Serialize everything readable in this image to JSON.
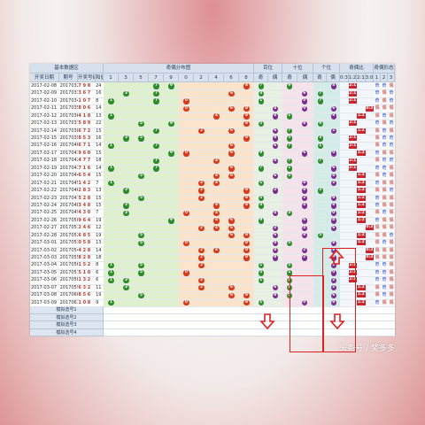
{
  "header": {
    "groups": [
      "基本数据区",
      "奇偶分布图",
      "百位",
      "十位",
      "个位",
      "奇偶比",
      "奇偶形态"
    ],
    "sub_basic": [
      "开奖日期",
      "期号",
      "开奖号码",
      "和值"
    ],
    "sub_dist": [
      "1",
      "3",
      "5",
      "7",
      "9",
      "0",
      "2",
      "4",
      "6",
      "8"
    ],
    "sub_pos": [
      "奇",
      "偶",
      "奇",
      "偶",
      "奇",
      "偶"
    ],
    "sub_ratio": [
      "0:3",
      "1:2",
      "2:1",
      "3:0"
    ],
    "sub_shape": [
      "1",
      "2",
      "3"
    ]
  },
  "rows": [
    {
      "date": "2017-02-08",
      "issue": "2017032",
      "nums": "7 9 8",
      "sum": "24"
    },
    {
      "date": "2017-02-09",
      "issue": "2017033",
      "nums": "3 6 7",
      "sum": "16"
    },
    {
      "date": "2017-02-10",
      "issue": "2017034",
      "nums": "1 0 7",
      "sum": "8"
    },
    {
      "date": "2017-02-11",
      "issue": "2017035",
      "nums": "8 0 6",
      "sum": "14"
    },
    {
      "date": "2017-02-12",
      "issue": "2017036",
      "nums": "4 1 8",
      "sum": "13"
    },
    {
      "date": "2017-02-13",
      "issue": "2017037",
      "nums": "5 8 9",
      "sum": "22"
    },
    {
      "date": "2017-02-14",
      "issue": "2017038",
      "nums": "6 7 2",
      "sum": "15"
    },
    {
      "date": "2017-02-15",
      "issue": "2017039",
      "nums": "8 5 3",
      "sum": "16"
    },
    {
      "date": "2017-02-16",
      "issue": "2017040",
      "nums": "6 7 1",
      "sum": "14"
    },
    {
      "date": "2017-02-17",
      "issue": "2017041",
      "nums": "9 6 0",
      "sum": "15"
    },
    {
      "date": "2017-02-18",
      "issue": "2017042",
      "nums": "4 7 7",
      "sum": "18"
    },
    {
      "date": "2017-02-19",
      "issue": "2017043",
      "nums": "7 1 6",
      "sum": "14"
    },
    {
      "date": "2017-02-20",
      "issue": "2017044",
      "nums": "6 5 4",
      "sum": "15"
    },
    {
      "date": "2017-02-21",
      "issue": "2017045",
      "nums": "1 4 2",
      "sum": "7"
    },
    {
      "date": "2017-02-22",
      "issue": "2017046",
      "nums": "2 8 3",
      "sum": "13"
    },
    {
      "date": "2017-02-23",
      "issue": "2017047",
      "nums": "5 2 8",
      "sum": "15"
    },
    {
      "date": "2017-02-24",
      "issue": "2017048",
      "nums": "3 4 8",
      "sum": "15"
    },
    {
      "date": "2017-02-25",
      "issue": "2017049",
      "nums": "4 3 0",
      "sum": "7"
    },
    {
      "date": "2017-02-26",
      "issue": "2017050",
      "nums": "9 6 4",
      "sum": "19"
    },
    {
      "date": "2017-02-27",
      "issue": "2017051",
      "nums": "2 4 6",
      "sum": "12"
    },
    {
      "date": "2017-02-28",
      "issue": "2017052",
      "nums": "6 8 5",
      "sum": "19"
    },
    {
      "date": "2017-03-01",
      "issue": "2017053",
      "nums": "0 5 8",
      "sum": "13"
    },
    {
      "date": "2017-03-02",
      "issue": "2017054",
      "nums": "4 2 8",
      "sum": "14"
    },
    {
      "date": "2017-03-03",
      "issue": "2017055",
      "nums": "8 2 8",
      "sum": "18"
    },
    {
      "date": "2017-03-04",
      "issue": "2017056",
      "nums": "1 5 2",
      "sum": "8"
    },
    {
      "date": "2017-03-05",
      "issue": "2017057",
      "nums": "5 1 0",
      "sum": "6"
    },
    {
      "date": "2017-03-06",
      "issue": "2017058",
      "nums": "1 3 2",
      "sum": "6"
    },
    {
      "date": "2017-03-07",
      "issue": "2017059",
      "nums": "6 3 2",
      "sum": "11"
    },
    {
      "date": "2017-03-08",
      "issue": "2017060",
      "nums": "8 5 6",
      "sum": "19"
    },
    {
      "date": "2017-03-09",
      "issue": "2017061",
      "nums": "1 0 8",
      "sum": "9"
    }
  ],
  "simulate": [
    "模拟选号1",
    "模拟选号2",
    "模拟选号3",
    "模拟选号4"
  ],
  "ratio_labels": [
    "1:2",
    "2:1",
    "3:0",
    "0:3"
  ],
  "shape_labels": [
    "奇",
    "偶"
  ],
  "watermark": "头条号 / 奖多多",
  "colors": {
    "odd": "#2e8b2e",
    "even": "#d83b1b",
    "purple": "#7a2f8a",
    "green_zone": "#dff0cf",
    "orange_zone": "#fbe3cc",
    "pink_zone": "#f7dbe3",
    "teal_zone": "#d4ece8",
    "ratio": "#c8252c",
    "highlight": "#e02020"
  }
}
